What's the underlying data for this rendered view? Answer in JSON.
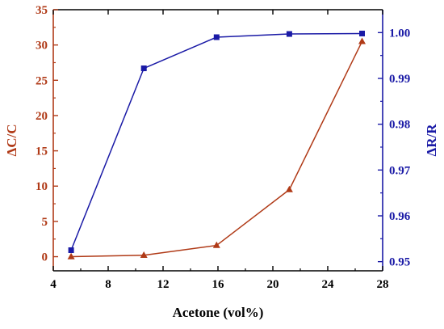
{
  "chart_data": {
    "type": "line",
    "xlabel": "Acetone (vol%)",
    "x_ticks": [
      "4",
      "8",
      "12",
      "16",
      "20",
      "24",
      "28"
    ],
    "xlim": [
      4,
      28
    ],
    "left_axis": {
      "label": "ΔC/C",
      "color": "#b03a17",
      "ylim": [
        -2,
        35
      ],
      "ticks": [
        "0",
        "5",
        "10",
        "15",
        "20",
        "25",
        "30",
        "35"
      ]
    },
    "right_axis": {
      "label": "ΔR/R",
      "color": "#1a1aa6",
      "ylim": [
        0.948,
        1.005
      ],
      "ticks": [
        "0.95",
        "0.96",
        "0.97",
        "0.98",
        "0.99",
        "1.00"
      ]
    },
    "series": [
      {
        "axis": "left",
        "marker": "triangle",
        "color": "#b03a17",
        "x": [
          5.3,
          10.6,
          15.9,
          21.2,
          26.5
        ],
        "y": [
          0.0,
          0.2,
          1.6,
          9.5,
          30.5
        ]
      },
      {
        "axis": "right",
        "marker": "square",
        "color": "#1a1aa6",
        "x": [
          5.3,
          10.6,
          15.9,
          21.2,
          26.5
        ],
        "y": [
          0.9525,
          0.9922,
          0.999,
          0.9997,
          0.9998
        ]
      }
    ],
    "grid": false,
    "legend": "none"
  }
}
